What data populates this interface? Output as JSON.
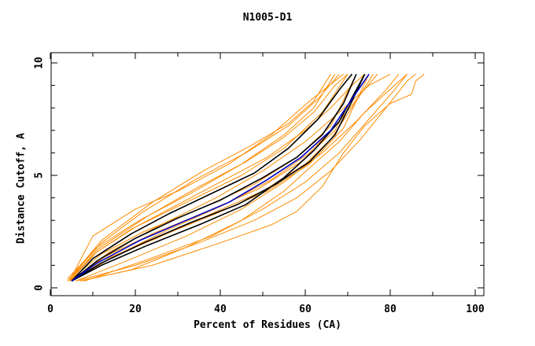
{
  "chart_data": {
    "type": "line",
    "title": "N1005-D1",
    "xlabel": "Percent of Residues (CA)",
    "ylabel": "Distance Cutoff, A",
    "xlim": [
      0,
      100
    ],
    "ylim": [
      0,
      10
    ],
    "xticks": [
      "0",
      "20",
      "40",
      "60",
      "80",
      "100"
    ],
    "yticks": [
      "0",
      "5",
      "10"
    ],
    "grid": false,
    "series": [
      {
        "color": "#ff8c00",
        "group": "orange",
        "values": [
          [
            4.5,
            0.3
          ],
          [
            12,
            1.5
          ],
          [
            22,
            2.5
          ],
          [
            35,
            3.5
          ],
          [
            48,
            4.6
          ],
          [
            58,
            5.8
          ],
          [
            66,
            7.2
          ],
          [
            72,
            9.5
          ]
        ]
      },
      {
        "color": "#ff8c00",
        "group": "orange",
        "values": [
          [
            4,
            0.3
          ],
          [
            11,
            1.6
          ],
          [
            20,
            2.7
          ],
          [
            32,
            3.8
          ],
          [
            45,
            5.0
          ],
          [
            55,
            6.2
          ],
          [
            64,
            7.8
          ],
          [
            70,
            9.5
          ]
        ]
      },
      {
        "color": "#ff8c00",
        "group": "orange",
        "values": [
          [
            4.5,
            0.3
          ],
          [
            13,
            1.4
          ],
          [
            24,
            2.4
          ],
          [
            37,
            3.4
          ],
          [
            49,
            4.4
          ],
          [
            59,
            5.6
          ],
          [
            67,
            7.0
          ],
          [
            74,
            9.5
          ]
        ]
      },
      {
        "color": "#ff8c00",
        "group": "orange",
        "values": [
          [
            5,
            0.3
          ],
          [
            14,
            1.3
          ],
          [
            26,
            2.3
          ],
          [
            39,
            3.3
          ],
          [
            51,
            4.3
          ],
          [
            61,
            5.5
          ],
          [
            69,
            7.1
          ],
          [
            75,
            9.5
          ]
        ]
      },
      {
        "color": "#ff8c00",
        "group": "orange",
        "values": [
          [
            4,
            0.4
          ],
          [
            11,
            1.8
          ],
          [
            21,
            3.0
          ],
          [
            33,
            4.2
          ],
          [
            45,
            5.5
          ],
          [
            55,
            6.8
          ],
          [
            62,
            8.0
          ],
          [
            67,
            9.5
          ]
        ]
      },
      {
        "color": "#ff8c00",
        "group": "orange",
        "values": [
          [
            4.5,
            0.4
          ],
          [
            12,
            2.0
          ],
          [
            22,
            3.4
          ],
          [
            34,
            4.8
          ],
          [
            46,
            6.0
          ],
          [
            56,
            7.2
          ],
          [
            63,
            8.4
          ],
          [
            68,
            9.5
          ]
        ]
      },
      {
        "color": "#ff8c00",
        "group": "orange",
        "values": [
          [
            4.5,
            0.3
          ],
          [
            10,
            2.3
          ],
          [
            20,
            3.5
          ],
          [
            30,
            4.3
          ],
          [
            42,
            5.5
          ],
          [
            52,
            6.8
          ],
          [
            61,
            8.3
          ],
          [
            69,
            9.5
          ]
        ]
      },
      {
        "color": "#ff8c00",
        "group": "orange",
        "values": [
          [
            5,
            0.3
          ],
          [
            12,
            1.2
          ],
          [
            25,
            2.2
          ],
          [
            38,
            3.3
          ],
          [
            50,
            4.3
          ],
          [
            60,
            5.5
          ],
          [
            66,
            6.6
          ],
          [
            72,
            8.3
          ],
          [
            76,
            9.5
          ]
        ]
      },
      {
        "color": "#ff8c00",
        "group": "orange",
        "values": [
          [
            5,
            0.3
          ],
          [
            14,
            1.6
          ],
          [
            26,
            2.8
          ],
          [
            39,
            4.0
          ],
          [
            50,
            5.2
          ],
          [
            60,
            6.5
          ],
          [
            68,
            7.8
          ],
          [
            75,
            9.0
          ],
          [
            80,
            9.5
          ]
        ]
      },
      {
        "color": "#ff8c00",
        "group": "orange",
        "values": [
          [
            6,
            0.3
          ],
          [
            18,
            1.2
          ],
          [
            32,
            2.3
          ],
          [
            45,
            3.5
          ],
          [
            55,
            4.7
          ],
          [
            64,
            6.0
          ],
          [
            72,
            7.4
          ],
          [
            79,
            8.8
          ],
          [
            82,
            9.5
          ]
        ]
      },
      {
        "color": "#ff8c00",
        "group": "orange",
        "values": [
          [
            8,
            0.3
          ],
          [
            22,
            1.2
          ],
          [
            38,
            2.3
          ],
          [
            50,
            3.5
          ],
          [
            60,
            4.7
          ],
          [
            68,
            6.0
          ],
          [
            75,
            7.5
          ],
          [
            81,
            8.8
          ],
          [
            84,
            9.5
          ]
        ]
      },
      {
        "color": "#ff8c00",
        "group": "orange",
        "values": [
          [
            6,
            0.3
          ],
          [
            20,
            1.0
          ],
          [
            35,
            2.0
          ],
          [
            48,
            3.0
          ],
          [
            58,
            4.0
          ],
          [
            66,
            5.2
          ],
          [
            73,
            6.6
          ],
          [
            79,
            8.0
          ],
          [
            84,
            9.2
          ],
          [
            86,
            9.5
          ]
        ]
      },
      {
        "color": "#ff8c00",
        "group": "orange",
        "values": [
          [
            7,
            0.3
          ],
          [
            24,
            1.0
          ],
          [
            40,
            2.0
          ],
          [
            52,
            2.8
          ],
          [
            58,
            3.4
          ],
          [
            64,
            4.5
          ],
          [
            69,
            6.0
          ],
          [
            74,
            7.2
          ],
          [
            80,
            8.2
          ],
          [
            85,
            8.6
          ],
          [
            86,
            9.2
          ],
          [
            88,
            9.5
          ]
        ]
      },
      {
        "color": "#ff8c00",
        "group": "orange",
        "values": [
          [
            7,
            0.3
          ],
          [
            19,
            0.8
          ],
          [
            32,
            1.8
          ],
          [
            45,
            3.0
          ],
          [
            55,
            4.3
          ],
          [
            62,
            5.5
          ],
          [
            68,
            6.5
          ],
          [
            74,
            7.8
          ],
          [
            81,
            9.0
          ],
          [
            84,
            9.5
          ]
        ]
      },
      {
        "color": "#ff8c00",
        "group": "orange",
        "values": [
          [
            4.5,
            0.3
          ],
          [
            11,
            1.6
          ],
          [
            19,
            2.6
          ],
          [
            29,
            3.6
          ],
          [
            41,
            4.8
          ],
          [
            51,
            5.8
          ],
          [
            60,
            7.0
          ],
          [
            66,
            8.0
          ],
          [
            71,
            9.0
          ],
          [
            74,
            9.5
          ]
        ]
      },
      {
        "color": "#ff8c00",
        "group": "orange",
        "values": [
          [
            4.5,
            0.4
          ],
          [
            12,
            2.1
          ],
          [
            24,
            3.8
          ],
          [
            36,
            5.2
          ],
          [
            47,
            6.3
          ],
          [
            56,
            7.3
          ],
          [
            62,
            8.3
          ],
          [
            66,
            9.5
          ]
        ]
      },
      {
        "color": "#ff8c00",
        "group": "orange",
        "values": [
          [
            4.5,
            0.3
          ],
          [
            11,
            1.7
          ],
          [
            23,
            3.2
          ],
          [
            35,
            4.5
          ],
          [
            46,
            5.6
          ],
          [
            55,
            6.7
          ],
          [
            62,
            7.8
          ],
          [
            67,
            9.0
          ],
          [
            70,
            9.5
          ]
        ]
      },
      {
        "color": "#ff8c00",
        "group": "orange",
        "values": [
          [
            5,
            0.3
          ],
          [
            15,
            1.4
          ],
          [
            28,
            2.6
          ],
          [
            41,
            3.7
          ],
          [
            52,
            4.8
          ],
          [
            61,
            6.0
          ],
          [
            68,
            7.4
          ],
          [
            73,
            8.6
          ],
          [
            77,
            9.5
          ]
        ]
      },
      {
        "color": "#000000",
        "group": "black",
        "values": [
          [
            5,
            0.3
          ],
          [
            11,
            1.2
          ],
          [
            20,
            2.2
          ],
          [
            30,
            3.1
          ],
          [
            40,
            3.9
          ],
          [
            50,
            4.9
          ],
          [
            58,
            5.8
          ],
          [
            64,
            6.8
          ],
          [
            69,
            8.2
          ],
          [
            72,
            9.5
          ]
        ]
      },
      {
        "color": "#000000",
        "group": "black",
        "values": [
          [
            5,
            0.3
          ],
          [
            12,
            1.1
          ],
          [
            22,
            2.0
          ],
          [
            33,
            2.9
          ],
          [
            44,
            3.7
          ],
          [
            53,
            4.6
          ],
          [
            61,
            5.6
          ],
          [
            67,
            6.8
          ],
          [
            71,
            8.3
          ],
          [
            74,
            9.5
          ]
        ]
      },
      {
        "color": "#000000",
        "group": "black",
        "values": [
          [
            5,
            0.3
          ],
          [
            10,
            1.3
          ],
          [
            19,
            2.4
          ],
          [
            28,
            3.3
          ],
          [
            38,
            4.2
          ],
          [
            48,
            5.1
          ],
          [
            56,
            6.2
          ],
          [
            63,
            7.5
          ],
          [
            68,
            8.8
          ],
          [
            71,
            9.5
          ]
        ]
      },
      {
        "color": "#000000",
        "group": "black",
        "values": [
          [
            5,
            0.3
          ],
          [
            12,
            1.0
          ],
          [
            23,
            1.9
          ],
          [
            35,
            2.8
          ],
          [
            46,
            3.7
          ],
          [
            55,
            4.9
          ],
          [
            62,
            6.1
          ],
          [
            68,
            7.4
          ],
          [
            72,
            8.8
          ],
          [
            74,
            9.5
          ]
        ]
      },
      {
        "color": "#0000cc",
        "group": "blue",
        "values": [
          [
            5,
            0.3
          ],
          [
            11,
            1.1
          ],
          [
            21,
            2.1
          ],
          [
            32,
            3.0
          ],
          [
            42,
            3.8
          ],
          [
            51,
            4.8
          ],
          [
            59,
            5.8
          ],
          [
            66,
            7.0
          ],
          [
            71,
            8.4
          ],
          [
            75,
            9.5
          ]
        ]
      }
    ]
  }
}
